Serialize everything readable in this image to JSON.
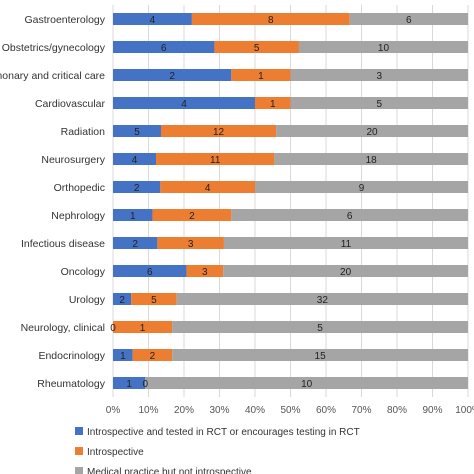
{
  "chart_data": {
    "type": "bar",
    "orientation": "horizontal",
    "stacking": "percent",
    "categories": [
      "Gastroenterology",
      "Obstetrics/gynecology",
      "Pulmonary and critical care",
      "Cardiovascular",
      "Radiation",
      "Neurosurgery",
      "Orthopedic",
      "Nephrology",
      "Infectious disease",
      "Oncology",
      "Urology",
      "Neurology, clinical",
      "Endocrinology",
      "Rheumatology"
    ],
    "series": [
      {
        "name": "Introspective and tested in RCT or encourages testing in RCT",
        "color": "#4472C4",
        "values": [
          4,
          6,
          2,
          4,
          5,
          4,
          2,
          1,
          2,
          6,
          2,
          0,
          1,
          1
        ]
      },
      {
        "name": "Introspective",
        "color": "#ED7D31",
        "values": [
          8,
          5,
          1,
          1,
          12,
          11,
          4,
          2,
          3,
          3,
          5,
          1,
          2,
          0
        ]
      },
      {
        "name": "Medical practice but not introspective",
        "color": "#A5A5A5",
        "values": [
          6,
          10,
          3,
          5,
          20,
          18,
          9,
          6,
          11,
          20,
          32,
          5,
          15,
          10
        ]
      }
    ],
    "x_ticks": [
      "0%",
      "10%",
      "20%",
      "30%",
      "40%",
      "50%",
      "60%",
      "70%",
      "80%",
      "90%",
      "100%"
    ],
    "xlim": [
      0,
      100
    ],
    "grid": true,
    "legend_position": "bottom",
    "title": "",
    "xlabel": "",
    "ylabel": ""
  }
}
